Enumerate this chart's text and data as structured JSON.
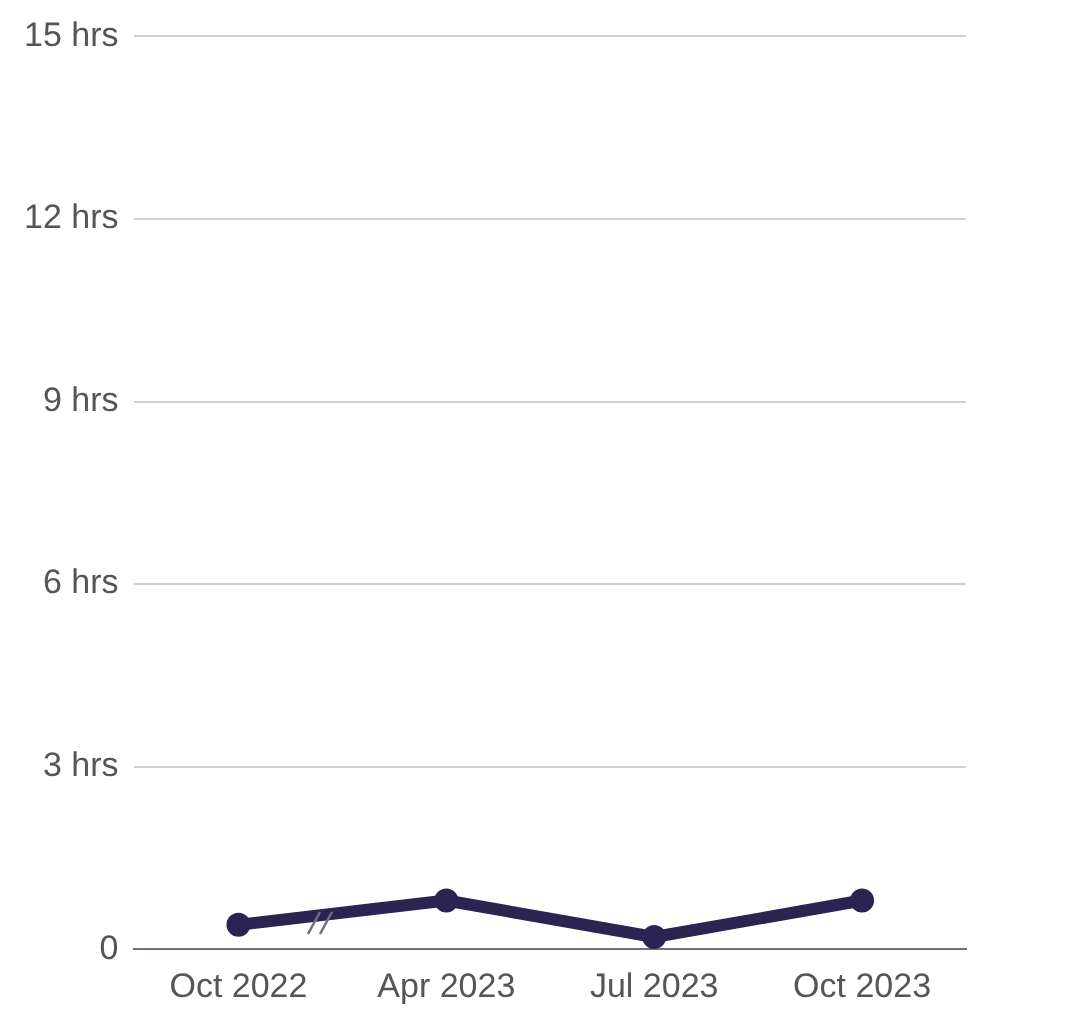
{
  "chart_data": {
    "type": "line",
    "categories": [
      "Oct 2022",
      "Apr 2023",
      "Jul 2023",
      "Oct 2023"
    ],
    "series": [
      {
        "color": "#2b2350",
        "values": [
          0.4,
          0.8,
          0.2,
          0.8
        ]
      }
    ],
    "ylim": [
      0,
      15
    ],
    "yticks": [
      0,
      {
        "value": 3,
        "label": "3 hrs"
      },
      {
        "value": 6,
        "label": "6 hrs"
      },
      {
        "value": 9,
        "label": "9 hrs"
      },
      {
        "value": 12,
        "label": "12 hrs"
      },
      {
        "value": 15,
        "label": "15 hrs"
      }
    ],
    "grid": "y",
    "legend": false,
    "marker": "circle",
    "line_style": "solid"
  }
}
